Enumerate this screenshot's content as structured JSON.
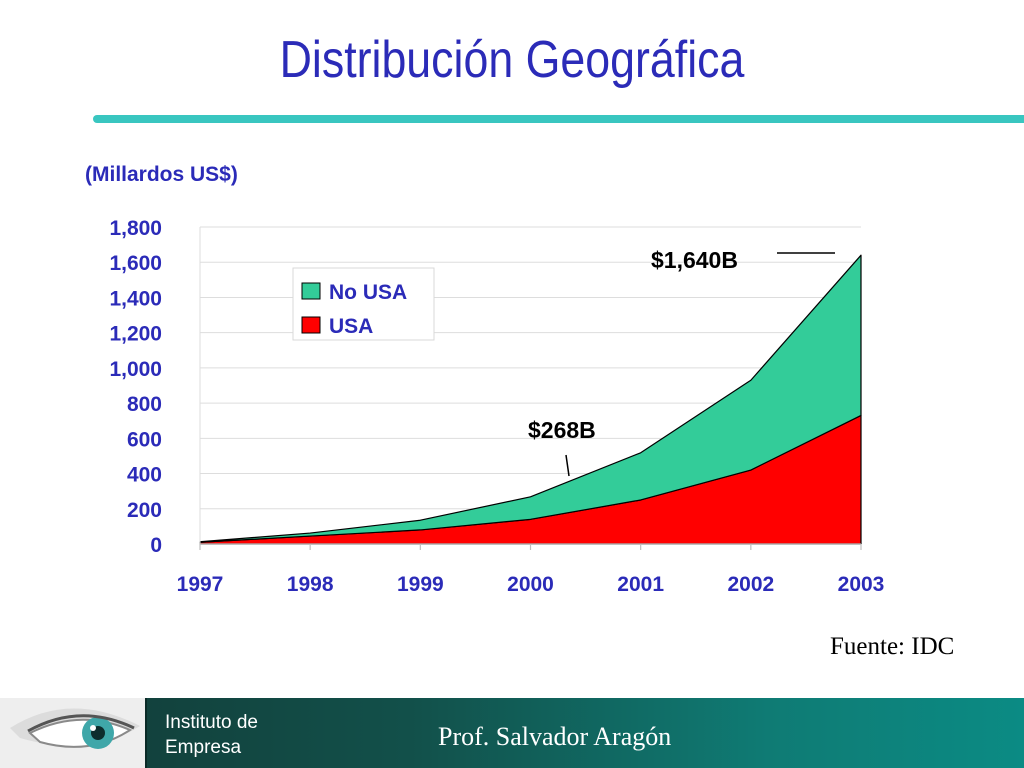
{
  "title": "Distribución Geográfica",
  "unit_label": "(Millardos US$)",
  "source": "Fuente: IDC",
  "footer": {
    "institute_line1": "Instituto de",
    "institute_line2": "Empresa",
    "professor": "Prof.  Salvador Aragón"
  },
  "colors": {
    "title": "#2b2bb8",
    "rule": "#39c6c0",
    "no_usa": "#33cc99",
    "usa": "#ff0000",
    "footer": "#0f7b74"
  },
  "chart_data": {
    "type": "area",
    "stacked": true,
    "x": [
      "1997",
      "1998",
      "1999",
      "2000",
      "2001",
      "2002",
      "2003"
    ],
    "series": [
      {
        "name": "USA",
        "color": "#ff0000",
        "values": [
          10,
          45,
          80,
          140,
          250,
          420,
          730
        ]
      },
      {
        "name": "No USA",
        "color": "#33cc99",
        "values": [
          3,
          17,
          55,
          128,
          268,
          510,
          910
        ]
      }
    ],
    "ylim": [
      0,
      1800
    ],
    "yticks": [
      0,
      200,
      400,
      600,
      800,
      1000,
      1200,
      1400,
      1600,
      1800
    ],
    "ytick_labels": [
      "0",
      "200",
      "400",
      "600",
      "800",
      "1,000",
      "1,200",
      "1,400",
      "1,600",
      "1,800"
    ],
    "grid": true,
    "legend": {
      "placement": "top-left",
      "entries": [
        "No USA",
        "USA"
      ]
    },
    "annotations": [
      {
        "text": "$268B",
        "x": "2000"
      },
      {
        "text": "$1,640B",
        "x": "2003"
      }
    ]
  }
}
